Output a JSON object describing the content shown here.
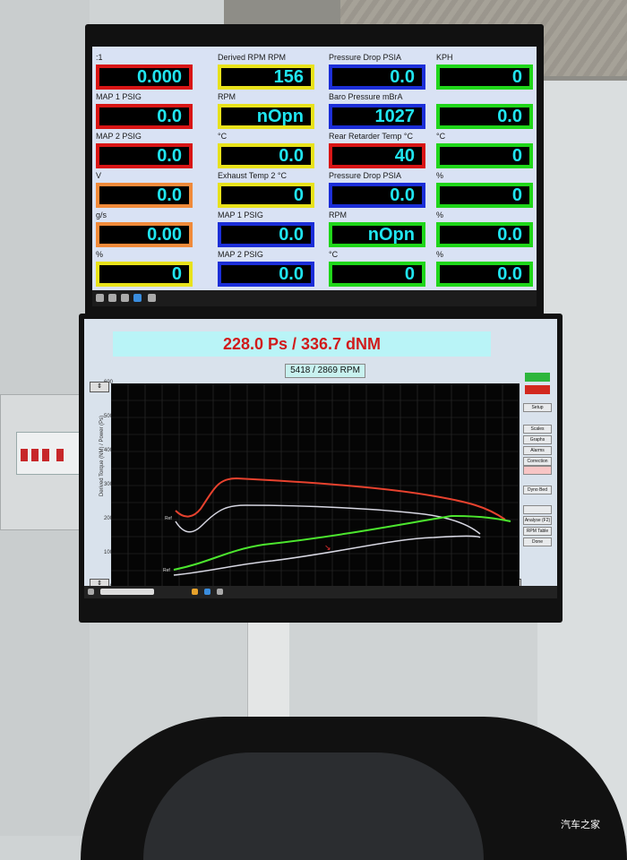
{
  "monitor1": {
    "gauges": [
      {
        "label": ":1",
        "value": "0.000",
        "color": "red"
      },
      {
        "label": "MAP 1 PSIG",
        "value": "0.0",
        "color": "red"
      },
      {
        "label": "MAP 2 PSIG",
        "value": "0.0",
        "color": "red"
      },
      {
        "label": "V",
        "value": "0.0",
        "color": "orange"
      },
      {
        "label": "g/s",
        "value": "0.00",
        "color": "orange"
      },
      {
        "label": "%",
        "value": "0",
        "color": "yellow"
      },
      {
        "label": "Derived RPM RPM",
        "value": "156",
        "color": "yellow"
      },
      {
        "label": "RPM",
        "value": "nOpn",
        "color": "yellow"
      },
      {
        "label": "°C",
        "value": "0.0",
        "color": "yellow"
      },
      {
        "label": "Exhaust Temp 2 °C",
        "value": "0",
        "color": "yellow"
      },
      {
        "label": "MAP 1 PSIG",
        "value": "0.0",
        "color": "blue"
      },
      {
        "label": "MAP 2 PSIG",
        "value": "0.0",
        "color": "blue"
      },
      {
        "label": "Pressure Drop PSIA",
        "value": "0.0",
        "color": "blue"
      },
      {
        "label": "Baro Pressure mBrA",
        "value": "1027",
        "color": "blue"
      },
      {
        "label": "Rear Retarder Temp °C",
        "value": "40",
        "color": "red"
      },
      {
        "label": "Pressure Drop PSIA",
        "value": "0.0",
        "color": "blue"
      },
      {
        "label": "RPM",
        "value": "nOpn",
        "color": "green"
      },
      {
        "label": "°C",
        "value": "0",
        "color": "green"
      },
      {
        "label": "KPH",
        "value": "0",
        "color": "green"
      },
      {
        "label": "",
        "value": "0.0",
        "color": "green"
      },
      {
        "label": "°C",
        "value": "0",
        "color": "green"
      },
      {
        "label": "%",
        "value": "0",
        "color": "green"
      },
      {
        "label": "%",
        "value": "0.0",
        "color": "green"
      },
      {
        "label": "%",
        "value": "0.0",
        "color": "green"
      }
    ]
  },
  "monitor2": {
    "power_readout": "228.0 Ps  / 336.7 dNM",
    "rpm_readout": "5418 / 2869 RPM",
    "y_ticks": [
      "600",
      "500",
      "400",
      "300",
      "200",
      "100",
      "0"
    ],
    "ylabel": "Derived Torque (NM) / Power (Ps)",
    "buttons": [
      "Setup",
      "Scales",
      "Graphs",
      "Alarms",
      "Correction",
      "Dyno Bed",
      "Analyse (F2)",
      "RPM Table",
      "Done"
    ],
    "series_labels": [
      "Ref",
      "Ref"
    ],
    "colors": {
      "power": "#e8422e",
      "torque": "#4ce62e",
      "ref": "#d7d7e2"
    }
  },
  "watermark": "汽车之家"
}
